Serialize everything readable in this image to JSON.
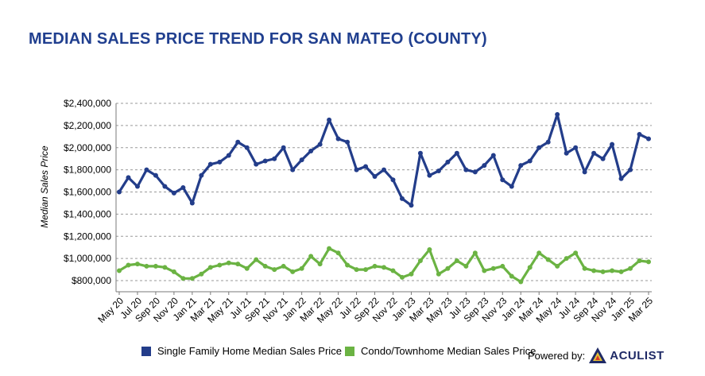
{
  "chart_data": {
    "type": "line",
    "title": "MEDIAN SALES PRICE TREND FOR SAN MATEO (COUNTY)",
    "ylabel": "Median Sales Price",
    "ylim": [
      700000,
      2400000
    ],
    "yticks": [
      800000,
      1000000,
      1200000,
      1400000,
      1600000,
      1800000,
      2000000,
      2200000,
      2400000
    ],
    "ytick_labels": [
      "$800,000",
      "$1,000,000",
      "$1,200,000",
      "$1,400,000",
      "$1,600,000",
      "$1,800,000",
      "$2,000,000",
      "$2,200,000",
      "$2,400,000"
    ],
    "grid": true,
    "legend_position": "bottom",
    "x": [
      "May 20",
      "Jun 20",
      "Jul 20",
      "Aug 20",
      "Sep 20",
      "Oct 20",
      "Nov 20",
      "Dec 20",
      "Jan 21",
      "Feb 21",
      "Mar 21",
      "Apr 21",
      "May 21",
      "Jun 21",
      "Jul 21",
      "Aug 21",
      "Sep 21",
      "Oct 21",
      "Nov 21",
      "Dec 21",
      "Jan 22",
      "Feb 22",
      "Mar 22",
      "Apr 22",
      "May 22",
      "Jun 22",
      "Jul 22",
      "Aug 22",
      "Sep 22",
      "Oct 22",
      "Nov 22",
      "Dec 22",
      "Jan 23",
      "Feb 23",
      "Mar 23",
      "Apr 23",
      "May 23",
      "Jun 23",
      "Jul 23",
      "Aug 23",
      "Sep 23",
      "Oct 23",
      "Nov 23",
      "Dec 23",
      "Jan 24",
      "Feb 24",
      "Mar 24",
      "Apr 24",
      "May 24",
      "Jun 24",
      "Jul 24",
      "Aug 24",
      "Sep 24",
      "Oct 24",
      "Nov 24",
      "Dec 24",
      "Jan 25",
      "Feb 25",
      "Mar 25"
    ],
    "xtick_labels": [
      "May 20",
      "Jul 20",
      "Sep 20",
      "Nov 20",
      "Jan 21",
      "Mar 21",
      "May 21",
      "Jul 21",
      "Sep 21",
      "Nov 21",
      "Jan 22",
      "Mar 22",
      "May 22",
      "Jul 22",
      "Sep 22",
      "Nov 22",
      "Jan 23",
      "Mar 23",
      "May 23",
      "Jul 23",
      "Sep 23",
      "Nov 23",
      "Jan 24",
      "Mar 24",
      "May 24",
      "Jul 24",
      "Sep 24",
      "Nov 24",
      "Jan 25",
      "Mar 25"
    ],
    "series": [
      {
        "name": "Single Family Home Median Sales Price",
        "color": "#233d8a",
        "values": [
          1600000,
          1730000,
          1650000,
          1800000,
          1750000,
          1650000,
          1590000,
          1640000,
          1500000,
          1750000,
          1850000,
          1870000,
          1930000,
          2050000,
          2000000,
          1850000,
          1880000,
          1900000,
          2000000,
          1800000,
          1890000,
          1970000,
          2030000,
          2250000,
          2080000,
          2050000,
          1800000,
          1830000,
          1740000,
          1800000,
          1710000,
          1540000,
          1480000,
          1950000,
          1750000,
          1790000,
          1870000,
          1950000,
          1800000,
          1780000,
          1840000,
          1930000,
          1710000,
          1650000,
          1840000,
          1880000,
          2000000,
          2050000,
          2300000,
          1950000,
          2000000,
          1780000,
          1950000,
          1900000,
          2030000,
          1720000,
          1800000,
          2120000,
          2080000
        ]
      },
      {
        "name": "Condo/Townhome Median Sales Price",
        "color": "#6bb343",
        "values": [
          890000,
          940000,
          950000,
          930000,
          930000,
          920000,
          880000,
          820000,
          820000,
          860000,
          920000,
          940000,
          960000,
          950000,
          910000,
          990000,
          930000,
          900000,
          930000,
          880000,
          910000,
          1020000,
          950000,
          1090000,
          1050000,
          940000,
          900000,
          900000,
          930000,
          920000,
          890000,
          830000,
          860000,
          980000,
          1080000,
          860000,
          910000,
          980000,
          930000,
          1050000,
          890000,
          910000,
          930000,
          840000,
          790000,
          920000,
          1050000,
          990000,
          930000,
          1000000,
          1050000,
          910000,
          890000,
          880000,
          890000,
          880000,
          910000,
          980000,
          970000
        ]
      }
    ]
  },
  "legend": {
    "sfh_label": "Single Family Home Median Sales Price",
    "condo_label": "Condo/Townhome Median Sales Price",
    "sfh_color": "#233d8a",
    "condo_color": "#6bb343"
  },
  "branding": {
    "powered_by": "Powered by:",
    "brand_name": "ACULIST"
  }
}
